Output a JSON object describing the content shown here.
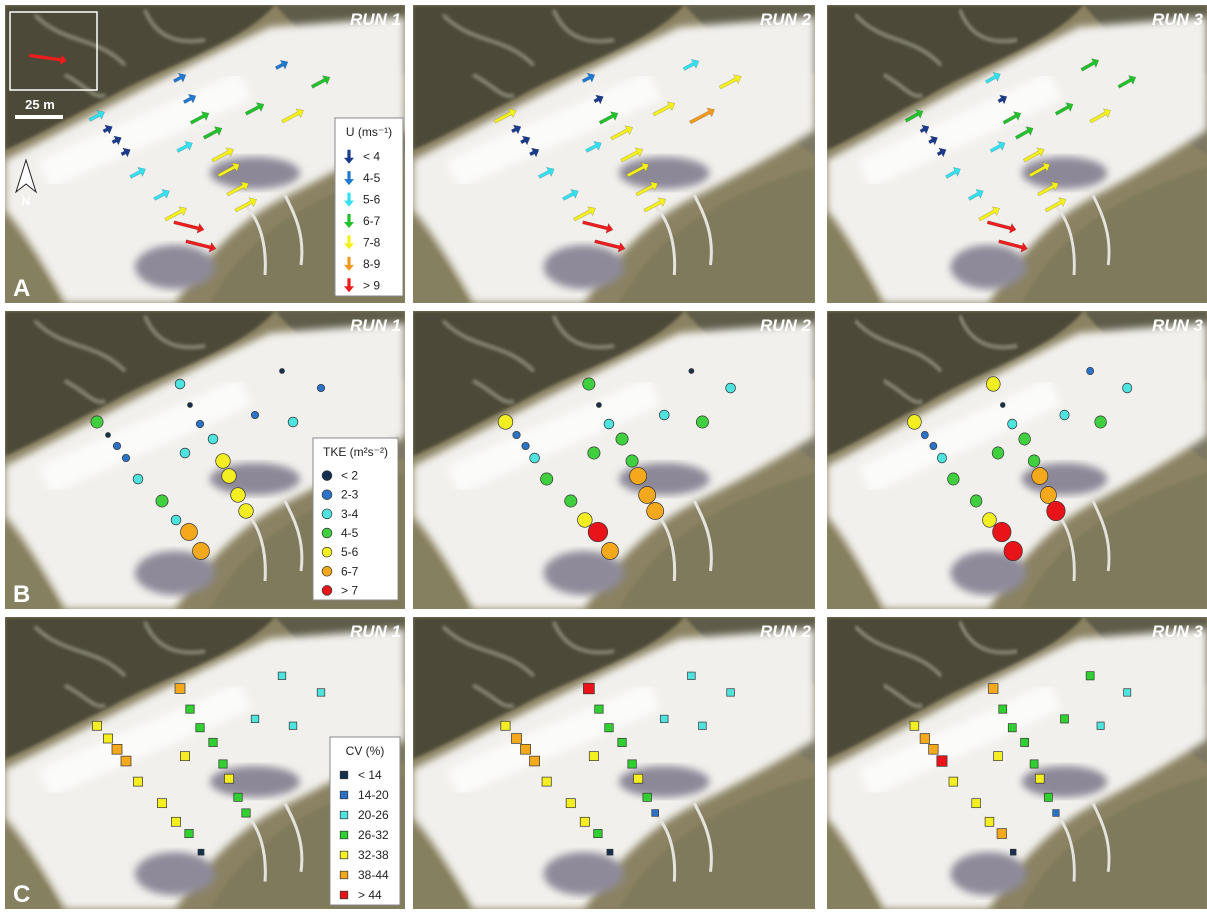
{
  "panels": {
    "rows": [
      "A",
      "B",
      "C"
    ],
    "run_titles": [
      "RUN 1",
      "RUN 2",
      "RUN 3"
    ]
  },
  "scale_bar": "25 m",
  "north": "N",
  "legends": [
    {
      "title": "U (ms⁻¹)",
      "marker": "arrow",
      "items": [
        {
          "label": "< 4",
          "color": "#1b3a8c"
        },
        {
          "label": "4-5",
          "color": "#1f78d1"
        },
        {
          "label": "5-6",
          "color": "#33e0f0"
        },
        {
          "label": "6-7",
          "color": "#22c02a"
        },
        {
          "label": "7-8",
          "color": "#f5f01a"
        },
        {
          "label": "8-9",
          "color": "#f39a1e"
        },
        {
          "label": "> 9",
          "color": "#ee1c1c"
        }
      ]
    },
    {
      "title": "TKE (m²s⁻²)",
      "marker": "circle",
      "items": [
        {
          "label": "< 2",
          "color": "#15304f"
        },
        {
          "label": "2-3",
          "color": "#2b73c6"
        },
        {
          "label": "3-4",
          "color": "#4fe3e0"
        },
        {
          "label": "4-5",
          "color": "#3fcf3f"
        },
        {
          "label": "5-6",
          "color": "#f2ee22"
        },
        {
          "label": "6-7",
          "color": "#f4a81c"
        },
        {
          "label": "> 7",
          "color": "#e8141a"
        }
      ]
    },
    {
      "title": "CV (%)",
      "marker": "square",
      "items": [
        {
          "label": "< 14",
          "color": "#15304f"
        },
        {
          "label": "14-20",
          "color": "#2b73c6"
        },
        {
          "label": "20-26",
          "color": "#4fe3e0"
        },
        {
          "label": "26-32",
          "color": "#2fd02f"
        },
        {
          "label": "32-38",
          "color": "#f4ee22"
        },
        {
          "label": "38-44",
          "color": "#f4a81c"
        },
        {
          "label": "> 44",
          "color": "#e8141a"
        }
      ]
    }
  ]
}
